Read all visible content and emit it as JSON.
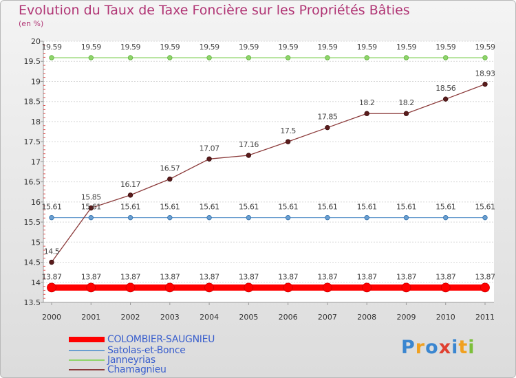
{
  "chart_data": {
    "type": "line",
    "title": "Evolution du Taux de Taxe Foncière sur les Propriétés Bâties",
    "ylabel": "(en %)",
    "xlabel": "",
    "categories": [
      "2000",
      "2001",
      "2002",
      "2003",
      "2004",
      "2005",
      "2006",
      "2007",
      "2008",
      "2009",
      "2010",
      "2011"
    ],
    "ylim": [
      13.5,
      20
    ],
    "yticks": [
      "13.5",
      "14",
      "14.5",
      "15",
      "15.5",
      "16",
      "16.5",
      "17",
      "17.5",
      "18",
      "18.5",
      "19",
      "19.5",
      "20"
    ],
    "legend_position": "bottom-left",
    "series": [
      {
        "name": "COLOMBIER-SAUGNIEU",
        "color": "#ff0000",
        "values": [
          13.87,
          13.87,
          13.87,
          13.87,
          13.87,
          13.87,
          13.87,
          13.87,
          13.87,
          13.87,
          13.87,
          13.87
        ],
        "labels": [
          "13.87",
          "13.87",
          "13.87",
          "13.87",
          "13.87",
          "13.87",
          "13.87",
          "13.87",
          "13.87",
          "13.87",
          "13.87",
          "13.87"
        ]
      },
      {
        "name": "Satolas-et-Bonce",
        "color": "#6a9ed0",
        "values": [
          15.61,
          15.61,
          15.61,
          15.61,
          15.61,
          15.61,
          15.61,
          15.61,
          15.61,
          15.61,
          15.61,
          15.61
        ],
        "labels": [
          "15.61",
          "15.61",
          "15.61",
          "15.61",
          "15.61",
          "15.61",
          "15.61",
          "15.61",
          "15.61",
          "15.61",
          "15.61",
          "15.61"
        ]
      },
      {
        "name": "Janneyrias",
        "color": "#8fd56a",
        "values": [
          19.59,
          19.59,
          19.59,
          19.59,
          19.59,
          19.59,
          19.59,
          19.59,
          19.59,
          19.59,
          19.59,
          19.59
        ],
        "labels": [
          "19.59",
          "19.59",
          "19.59",
          "19.59",
          "19.59",
          "19.59",
          "19.59",
          "19.59",
          "19.59",
          "19.59",
          "19.59",
          "19.59"
        ]
      },
      {
        "name": "Chamagnieu",
        "color": "#8b3a3a",
        "values": [
          14.5,
          15.85,
          16.17,
          16.57,
          17.07,
          17.16,
          17.5,
          17.85,
          18.2,
          18.2,
          18.56,
          18.93
        ],
        "labels": [
          "14.5",
          "15.85",
          "16.17",
          "16.57",
          "17.07",
          "17.16",
          "17.5",
          "17.85",
          "18.2",
          "18.2",
          "18.56",
          "18.93"
        ]
      }
    ]
  },
  "brand": {
    "name": "Proxiti",
    "letters": [
      "P",
      "r",
      "o",
      "x",
      "i",
      "t",
      "i"
    ],
    "colors": [
      "#3a86d0",
      "#f0a020",
      "#3a86d0",
      "#e04030",
      "#3a86d0",
      "#f0a020",
      "#7cbf3a"
    ]
  }
}
